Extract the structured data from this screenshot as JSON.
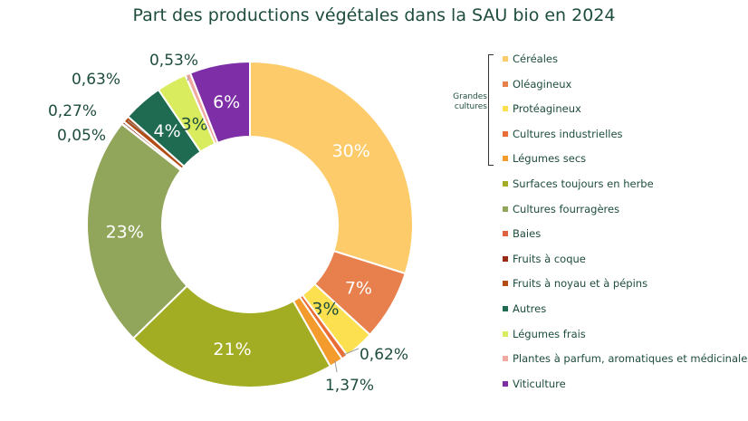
{
  "chart_data": {
    "type": "pie",
    "title": "Part des productions végétales dans la SAU bio en 2024",
    "slices": [
      {
        "label": "Céréales",
        "value": 30,
        "display": "30%",
        "color": "#fdcb6a"
      },
      {
        "label": "Oléagineux",
        "value": 7,
        "display": "7%",
        "color": "#e8804e"
      },
      {
        "label": "Protéagineux",
        "value": 3,
        "display": "3%",
        "color": "#fce050"
      },
      {
        "label": "Cultures industrielles",
        "value": 0.62,
        "display": "0,62%",
        "color": "#ea6d35"
      },
      {
        "label": "Légumes secs",
        "value": 1.37,
        "display": "1,37%",
        "color": "#f39b2c"
      },
      {
        "label": "Surfaces toujours en herbe",
        "value": 21,
        "display": "21%",
        "color": "#a2ad23"
      },
      {
        "label": "Cultures fourragères",
        "value": 23,
        "display": "23%",
        "color": "#92a65b"
      },
      {
        "label": "Baies",
        "value": 0.05,
        "display": "0,05%",
        "color": "#e0623e"
      },
      {
        "label": "Fruits à coque",
        "value": 0.27,
        "display": "0,27%",
        "color": "#9a2a13"
      },
      {
        "label": "Fruits à noyau et à pépins",
        "value": 0.63,
        "display": "0,63%",
        "color": "#b24b14"
      },
      {
        "label": "Autres",
        "value": 4,
        "display": "4%",
        "color": "#1f6b52"
      },
      {
        "label": "Légumes frais",
        "value": 3,
        "display": "3%",
        "color": "#d9ec5e"
      },
      {
        "label": "Plantes à parfum, aromatiques et médicinales",
        "value": 0.53,
        "display": "0,53%",
        "color": "#f0a8a0"
      },
      {
        "label": "Viticulture",
        "value": 6,
        "display": "6%",
        "color": "#7e2ea6"
      }
    ],
    "legend_group": {
      "label": "Grandes cultures",
      "members": [
        "Céréales",
        "Oléagineux",
        "Protéagineux",
        "Cultures industrielles",
        "Légumes secs"
      ]
    },
    "legend_position": "right"
  }
}
